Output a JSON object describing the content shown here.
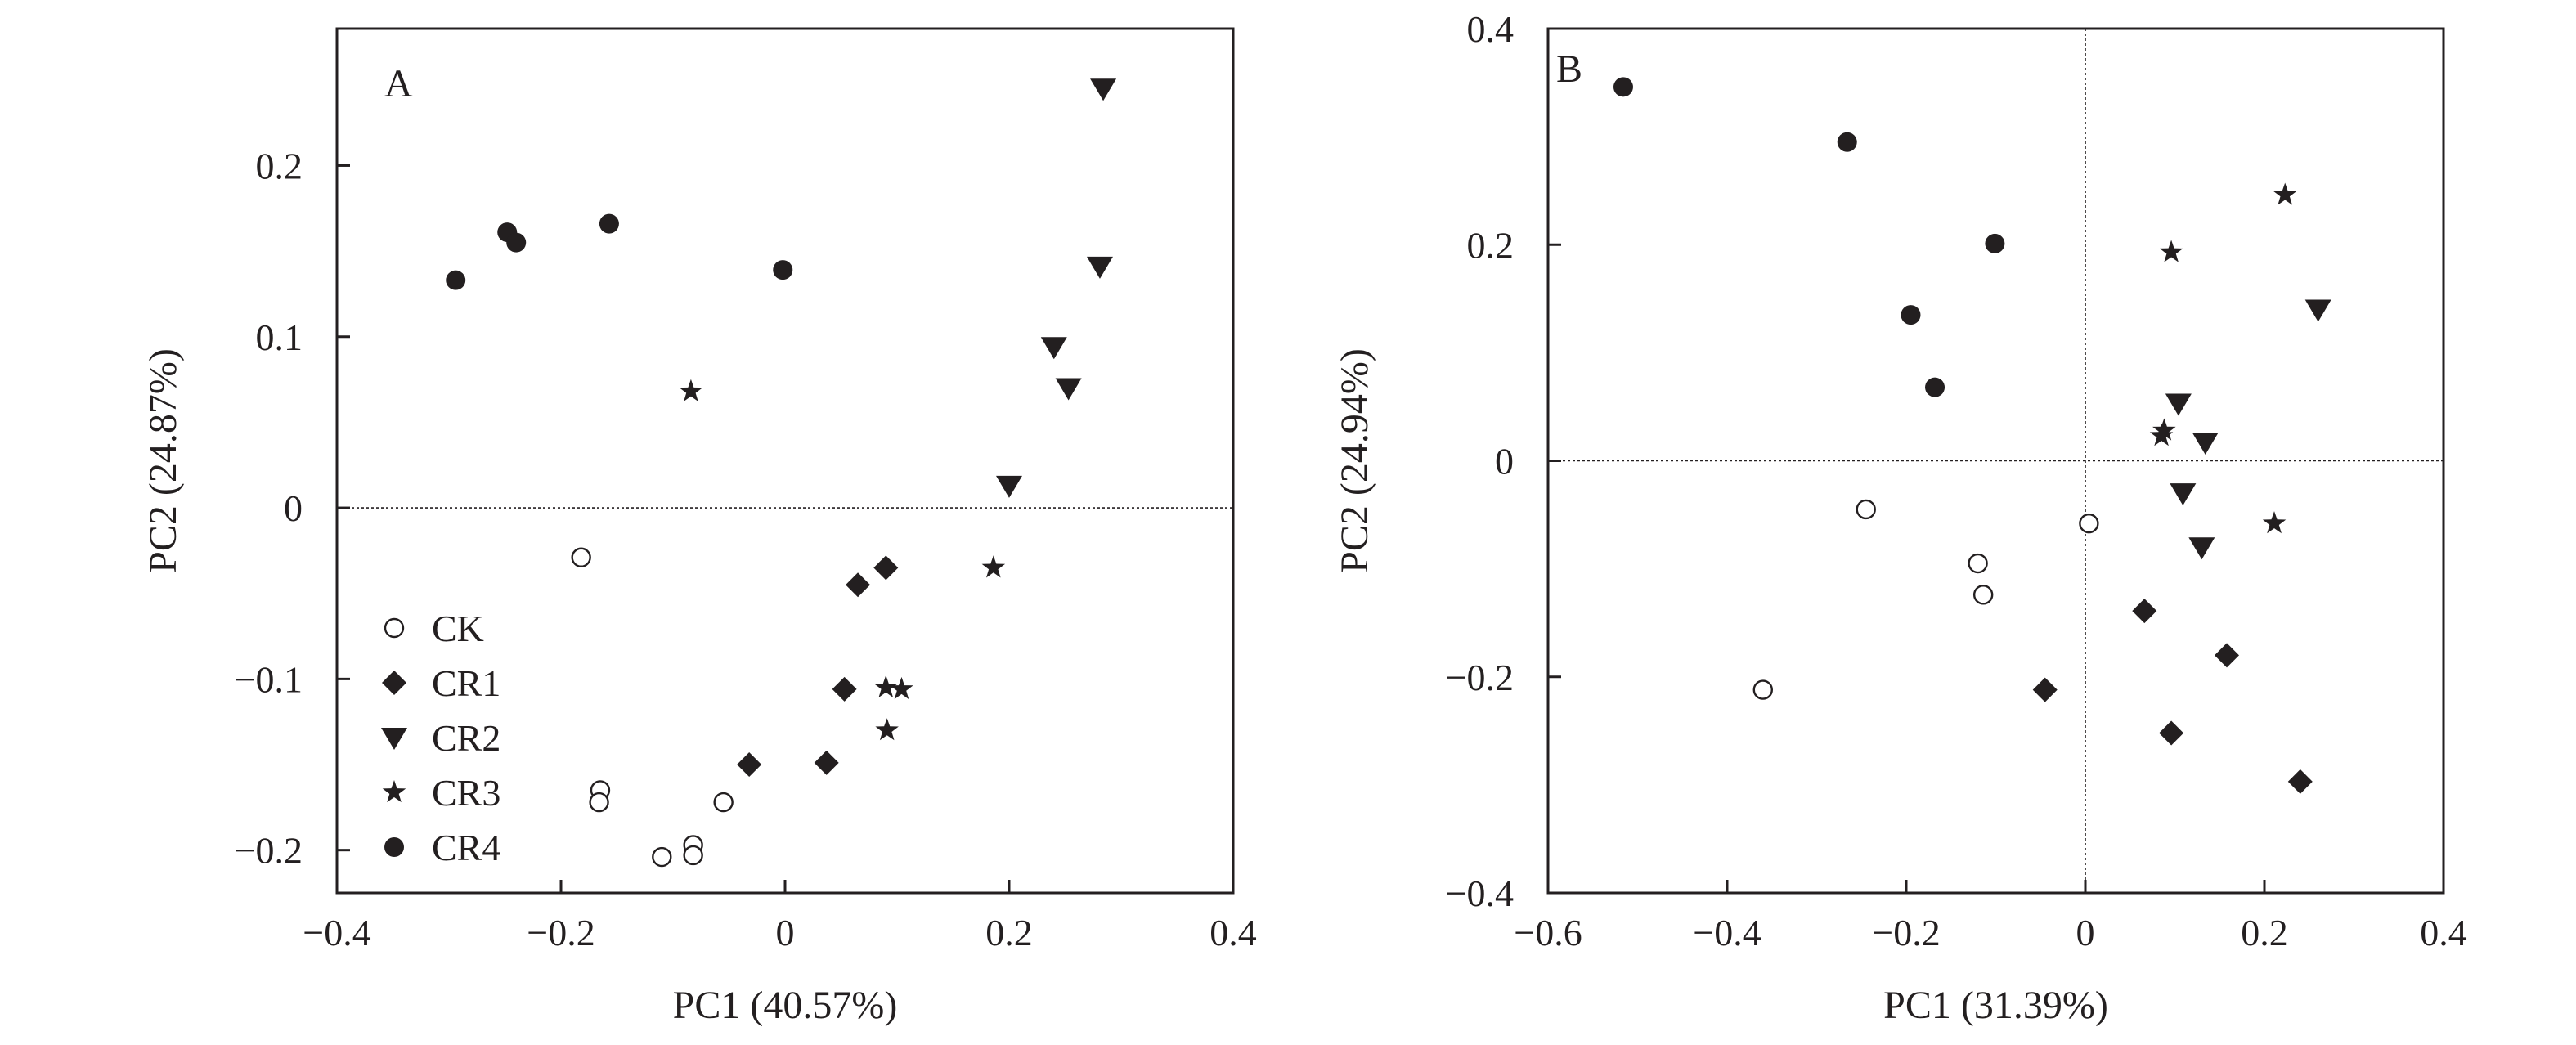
{
  "colors": {
    "ink": "#231f20",
    "background": "#ffffff"
  },
  "chart_data": [
    {
      "type": "scatter",
      "panel_label": "A",
      "xlabel": "PC1 (40.57%)",
      "ylabel": "PC2 (24.87%)",
      "xlim": [
        -0.4,
        0.4
      ],
      "ylim": [
        -0.225,
        0.28
      ],
      "xticks": [
        -0.4,
        -0.2,
        0,
        0.2,
        0.4
      ],
      "xtick_labels": [
        "−0.4",
        "−0.2",
        "0",
        "0.2",
        "0.4"
      ],
      "yticks": [
        -0.2,
        -0.1,
        0,
        0.1,
        0.2
      ],
      "ytick_labels": [
        "−0.2",
        "−0.1",
        "0",
        "0.1",
        "0.2"
      ],
      "zero_lines": [
        "horizontal"
      ],
      "grid": false,
      "legend": {
        "position": "bottom-left",
        "entries": [
          {
            "label": "CK",
            "marker": "open-circle"
          },
          {
            "label": "CR1",
            "marker": "diamond"
          },
          {
            "label": "CR2",
            "marker": "down-triangle"
          },
          {
            "label": "CR3",
            "marker": "star"
          },
          {
            "label": "CR4",
            "marker": "filled-circle"
          }
        ]
      },
      "series": [
        {
          "name": "CK",
          "marker": "open-circle",
          "points": [
            [
              -0.182,
              -0.029
            ],
            [
              -0.165,
              -0.165
            ],
            [
              -0.166,
              -0.172
            ],
            [
              -0.055,
              -0.172
            ],
            [
              -0.082,
              -0.197
            ],
            [
              -0.082,
              -0.203
            ],
            [
              -0.11,
              -0.204
            ]
          ]
        },
        {
          "name": "CR1",
          "marker": "diamond",
          "points": [
            [
              0.065,
              -0.045
            ],
            [
              0.09,
              -0.035
            ],
            [
              0.053,
              -0.106
            ],
            [
              -0.032,
              -0.15
            ],
            [
              0.037,
              -0.149
            ]
          ]
        },
        {
          "name": "CR2",
          "marker": "down-triangle",
          "points": [
            [
              0.284,
              0.245
            ],
            [
              0.281,
              0.141
            ],
            [
              0.24,
              0.094
            ],
            [
              0.253,
              0.07
            ],
            [
              0.2,
              0.013
            ]
          ]
        },
        {
          "name": "CR3",
          "marker": "star",
          "points": [
            [
              -0.084,
              0.068
            ],
            [
              0.186,
              -0.035
            ],
            [
              0.09,
              -0.105
            ],
            [
              0.104,
              -0.106
            ],
            [
              0.091,
              -0.13
            ]
          ]
        },
        {
          "name": "CR4",
          "marker": "filled-circle",
          "points": [
            [
              -0.294,
              0.133
            ],
            [
              -0.248,
              0.161
            ],
            [
              -0.24,
              0.155
            ],
            [
              -0.157,
              0.166
            ],
            [
              -0.002,
              0.139
            ]
          ]
        }
      ]
    },
    {
      "type": "scatter",
      "panel_label": "B",
      "xlabel": "PC1 (31.39%)",
      "ylabel": "PC2 (24.94%)",
      "xlim": [
        -0.6,
        0.4
      ],
      "ylim": [
        -0.4,
        0.4
      ],
      "xticks": [
        -0.6,
        -0.4,
        -0.2,
        0,
        0.2,
        0.4
      ],
      "xtick_labels": [
        "−0.6",
        "−0.4",
        "−0.2",
        "0",
        "0.2",
        "0.4"
      ],
      "yticks": [
        -0.4,
        -0.2,
        0,
        0.2,
        0.4
      ],
      "ytick_labels": [
        "−0.4",
        "−0.2",
        "0",
        "0.2",
        "0.4"
      ],
      "zero_lines": [
        "horizontal",
        "vertical"
      ],
      "grid": false,
      "series": [
        {
          "name": "CK",
          "marker": "open-circle",
          "points": [
            [
              -0.245,
              -0.045
            ],
            [
              -0.12,
              -0.095
            ],
            [
              -0.114,
              -0.124
            ],
            [
              0.004,
              -0.058
            ],
            [
              -0.36,
              -0.212
            ]
          ]
        },
        {
          "name": "CR1",
          "marker": "diamond",
          "points": [
            [
              0.066,
              -0.139
            ],
            [
              0.158,
              -0.18
            ],
            [
              -0.045,
              -0.212
            ],
            [
              0.096,
              -0.252
            ],
            [
              0.24,
              -0.297
            ]
          ]
        },
        {
          "name": "CR2",
          "marker": "down-triangle",
          "points": [
            [
              0.104,
              0.053
            ],
            [
              0.26,
              0.14
            ],
            [
              0.134,
              0.017
            ],
            [
              0.109,
              -0.03
            ],
            [
              0.13,
              -0.08
            ]
          ]
        },
        {
          "name": "CR3",
          "marker": "star",
          "points": [
            [
              0.223,
              0.246
            ],
            [
              0.096,
              0.193
            ],
            [
              0.088,
              0.028
            ],
            [
              0.085,
              0.023
            ],
            [
              0.211,
              -0.058
            ]
          ]
        },
        {
          "name": "CR4",
          "marker": "filled-circle",
          "points": [
            [
              -0.516,
              0.346
            ],
            [
              -0.266,
              0.295
            ],
            [
              -0.101,
              0.201
            ],
            [
              -0.195,
              0.135
            ],
            [
              -0.168,
              0.068
            ]
          ]
        }
      ]
    }
  ]
}
